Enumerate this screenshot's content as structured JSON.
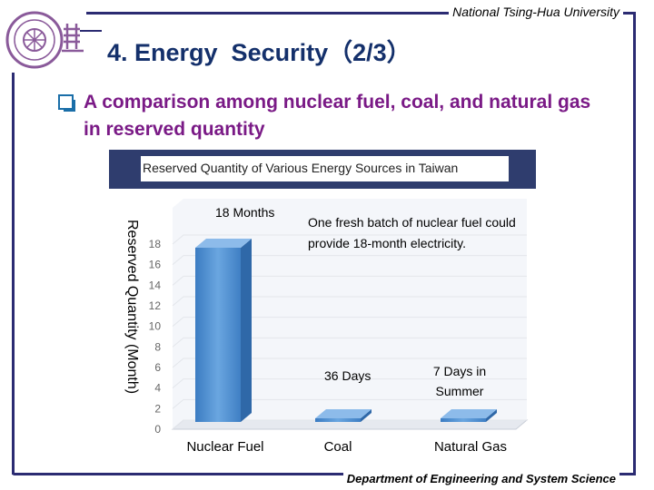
{
  "header": {
    "university": "National Tsing-Hua University",
    "title": "4. Energy  Security（2/3）",
    "subtitle": "A comparison among nuclear fuel, coal, and natural gas in reserved quantity"
  },
  "footer": {
    "department": "Department of Engineering and System Science"
  },
  "annotations": {
    "nuclear_value": "18 Months",
    "nuclear_note": "One fresh batch of nuclear fuel could provide 18-month electricity.",
    "coal_value": "36 Days",
    "gas_value": "7 Days in Summer"
  },
  "colors": {
    "frame": "#2b2b72",
    "title": "#14306b",
    "subtitle": "#7a1a86",
    "bar": "#4f8fd0"
  },
  "chart_data": {
    "type": "bar",
    "title": "Reserved Quantity of Various Energy Sources in Taiwan",
    "ylabel": "Reserved Quantity (Month)",
    "xlabel": "",
    "categories": [
      "Nuclear Fuel",
      "Coal",
      "Natural Gas"
    ],
    "values": [
      18,
      1.2,
      0.23
    ],
    "ylim": [
      0,
      18
    ],
    "yticks": [
      0,
      2,
      4,
      6,
      8,
      10,
      12,
      14,
      16,
      18
    ],
    "grid": true
  }
}
